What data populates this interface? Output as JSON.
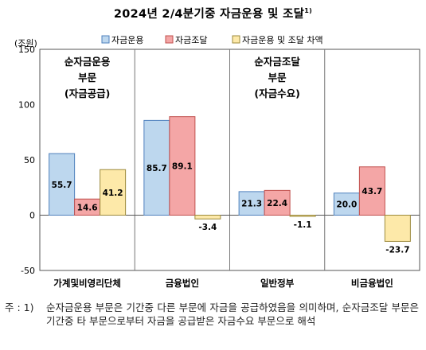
{
  "title": "2024년 2/4분기중 자금운용 및 조달",
  "title_sup": "1)",
  "footnote": {
    "prefix": "주 : 1)",
    "text": "순자금운용 부문은 기간중 다른 부문에 자금을 공급하였음을 의미하며, 순자금조달 부문은 기간중 타 부문으로부터 자금을 공급받은 자금수요 부문으로 해석"
  },
  "chart_data": {
    "type": "bar",
    "unit_label": "(조원)",
    "categories": [
      "가계및비영리단체",
      "금융법인",
      "일반정부",
      "비금융법인"
    ],
    "series": [
      {
        "name": "자금운용",
        "values": [
          55.7,
          85.7,
          21.3,
          20.0
        ],
        "color": "#bdd7ee",
        "stroke": "#4f81bd"
      },
      {
        "name": "자금조달",
        "values": [
          14.6,
          89.1,
          22.4,
          43.7
        ],
        "color": "#f4a6a6",
        "stroke": "#c0504d"
      },
      {
        "name": "자금운용 및 조달 차액",
        "values": [
          41.2,
          -3.4,
          -1.1,
          -23.7
        ],
        "color": "#fde9a9",
        "stroke": "#9c8a3c"
      }
    ],
    "data_labels": [
      [
        "55.7",
        "14.6",
        "41.2"
      ],
      [
        "85.7",
        "89.1",
        "-3.4"
      ],
      [
        "21.3",
        "22.4",
        "-1.1"
      ],
      [
        "20.0",
        "43.7",
        "-23.7"
      ]
    ],
    "ylim": [
      -50,
      150
    ],
    "yticks": [
      -50,
      0,
      50,
      100,
      150
    ],
    "annotations": [
      {
        "lines": [
          "순자금운용",
          "부문",
          "(자금공급)"
        ]
      },
      {
        "lines": [
          "순자금조달",
          "부문",
          "(자금수요)"
        ]
      }
    ]
  }
}
